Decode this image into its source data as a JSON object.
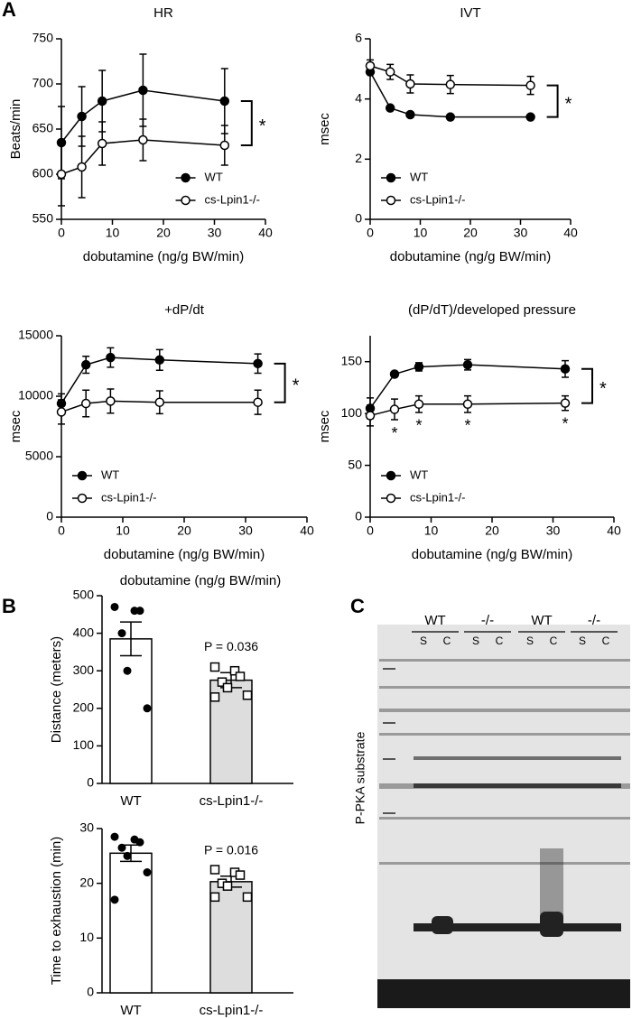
{
  "panel_labels": [
    "A",
    "B",
    "C"
  ],
  "chart_data": [
    {
      "type": "line",
      "title": "HR",
      "xlabel": "dobutamine (ng/g BW/min)",
      "ylabel": "Beats/min",
      "x": [
        0,
        4,
        8,
        16,
        32
      ],
      "xlim": [
        0,
        40
      ],
      "xticks": [
        0,
        10,
        20,
        30,
        40
      ],
      "ylim": [
        550,
        750
      ],
      "yticks": [
        550,
        600,
        650,
        700,
        750
      ],
      "legend": "lower right",
      "annotation": "*",
      "series": [
        {
          "name": "WT",
          "color": "#000000",
          "marker_fill": "#000000",
          "values": [
            635,
            664,
            681,
            693,
            681
          ],
          "errors": [
            40,
            33,
            34,
            40,
            36
          ]
        },
        {
          "name": "cs-Lpin1-/-",
          "color": "#000000",
          "marker_fill": "#ffffff",
          "values": [
            600,
            608,
            634,
            638,
            632
          ],
          "errors": [
            35,
            34,
            24,
            23,
            22
          ]
        }
      ]
    },
    {
      "type": "line",
      "title": "IVT",
      "xlabel": "dobutamine (ng/g BW/min)",
      "ylabel": "msec",
      "x": [
        0,
        4,
        8,
        16,
        32
      ],
      "xlim": [
        0,
        40
      ],
      "xticks": [
        0,
        10,
        20,
        30,
        40
      ],
      "ylim": [
        0,
        6
      ],
      "yticks": [
        0,
        2,
        4,
        6
      ],
      "legend": "lower left",
      "annotation": "*",
      "series": [
        {
          "name": "WT",
          "color": "#000000",
          "marker_fill": "#000000",
          "values": [
            4.9,
            3.7,
            3.48,
            3.4,
            3.4
          ],
          "errors": [
            0.05,
            0.05,
            0.05,
            0.05,
            0.05
          ]
        },
        {
          "name": "cs-Lpin1-/-",
          "color": "#000000",
          "marker_fill": "#ffffff",
          "values": [
            5.1,
            4.9,
            4.5,
            4.48,
            4.45
          ],
          "errors": [
            0.2,
            0.25,
            0.3,
            0.3,
            0.3
          ]
        }
      ]
    },
    {
      "type": "line",
      "title": "+dP/dt",
      "xlabel": "dobutamine (ng/g BW/min)",
      "ylabel": "msec",
      "x": [
        0,
        4,
        8,
        16,
        32
      ],
      "xlim": [
        0,
        40
      ],
      "xticks": [
        0,
        10,
        20,
        30,
        40
      ],
      "ylim": [
        0,
        15000
      ],
      "yticks": [
        0,
        5000,
        10000,
        15000
      ],
      "legend": "lower left",
      "annotation": "*",
      "series": [
        {
          "name": "WT",
          "color": "#000000",
          "marker_fill": "#000000",
          "values": [
            9400,
            12600,
            13200,
            13000,
            12700
          ],
          "errors": [
            800,
            700,
            800,
            850,
            800
          ]
        },
        {
          "name": "cs-Lpin1-/-",
          "color": "#000000",
          "marker_fill": "#ffffff",
          "values": [
            8700,
            9400,
            9600,
            9500,
            9500
          ],
          "errors": [
            1000,
            1100,
            1000,
            950,
            1000
          ]
        }
      ]
    },
    {
      "type": "line",
      "title": "(dP/dT)/developed pressure",
      "xlabel": "dobutamine (ng/g BW/min)",
      "ylabel": "msec",
      "x": [
        0,
        4,
        8,
        16,
        32
      ],
      "xlim": [
        0,
        40
      ],
      "xticks": [
        0,
        10,
        20,
        30,
        40
      ],
      "ylim": [
        0,
        175
      ],
      "yticks": [
        0,
        50,
        100,
        150
      ],
      "legend": "lower left",
      "annotation": "*",
      "series": [
        {
          "name": "WT",
          "color": "#000000",
          "marker_fill": "#000000",
          "values": [
            105,
            138,
            145,
            147,
            143
          ],
          "errors": [
            10,
            2,
            4,
            5,
            8
          ]
        },
        {
          "name": "cs-Lpin1-/-",
          "color": "#000000",
          "marker_fill": "#ffffff",
          "values": [
            98,
            104,
            109,
            109,
            110
          ],
          "errors": [
            10,
            10,
            8,
            8,
            7
          ],
          "point_labels": [
            null,
            "*",
            "*",
            "*",
            "*"
          ]
        }
      ]
    },
    {
      "type": "bar",
      "title": "dobutamine (ng/g BW/min)",
      "ylabel": "Distance (meters)",
      "categories": [
        "WT",
        "cs-Lpin1-/-"
      ],
      "values": [
        385,
        275
      ],
      "errors": [
        45,
        20
      ],
      "colors": [
        "#ffffff",
        "#dddddd"
      ],
      "point_shapes": [
        "circle",
        "square"
      ],
      "points": [
        [
          470,
          460,
          460,
          400,
          300,
          200
        ],
        [
          310,
          300,
          285,
          270,
          255,
          235,
          230
        ]
      ],
      "ylim": [
        0,
        500
      ],
      "yticks": [
        0,
        100,
        200,
        300,
        400,
        500
      ],
      "annotation": "P = 0.036"
    },
    {
      "type": "bar",
      "ylabel": "Time to exhaustion (min)",
      "categories": [
        "WT",
        "cs-Lpin1-/-"
      ],
      "values": [
        25.5,
        20.3
      ],
      "errors": [
        1.5,
        1
      ],
      "colors": [
        "#ffffff",
        "#dddddd"
      ],
      "point_shapes": [
        "circle",
        "square"
      ],
      "points": [
        [
          28.5,
          28,
          27.5,
          26.5,
          25,
          22,
          17
        ],
        [
          22.5,
          22,
          21.5,
          20,
          19.5,
          17.5,
          17.5
        ]
      ],
      "ylim": [
        0,
        30
      ],
      "yticks": [
        0,
        10,
        20,
        30
      ],
      "annotation": "P = 0.016"
    }
  ],
  "blot": {
    "groups": [
      "WT",
      "-/-",
      "WT",
      "-/-"
    ],
    "lanes": [
      "S",
      "C",
      "S",
      "C",
      "S",
      "C",
      "S",
      "C"
    ],
    "ylabel": "P-PKA substrate"
  }
}
